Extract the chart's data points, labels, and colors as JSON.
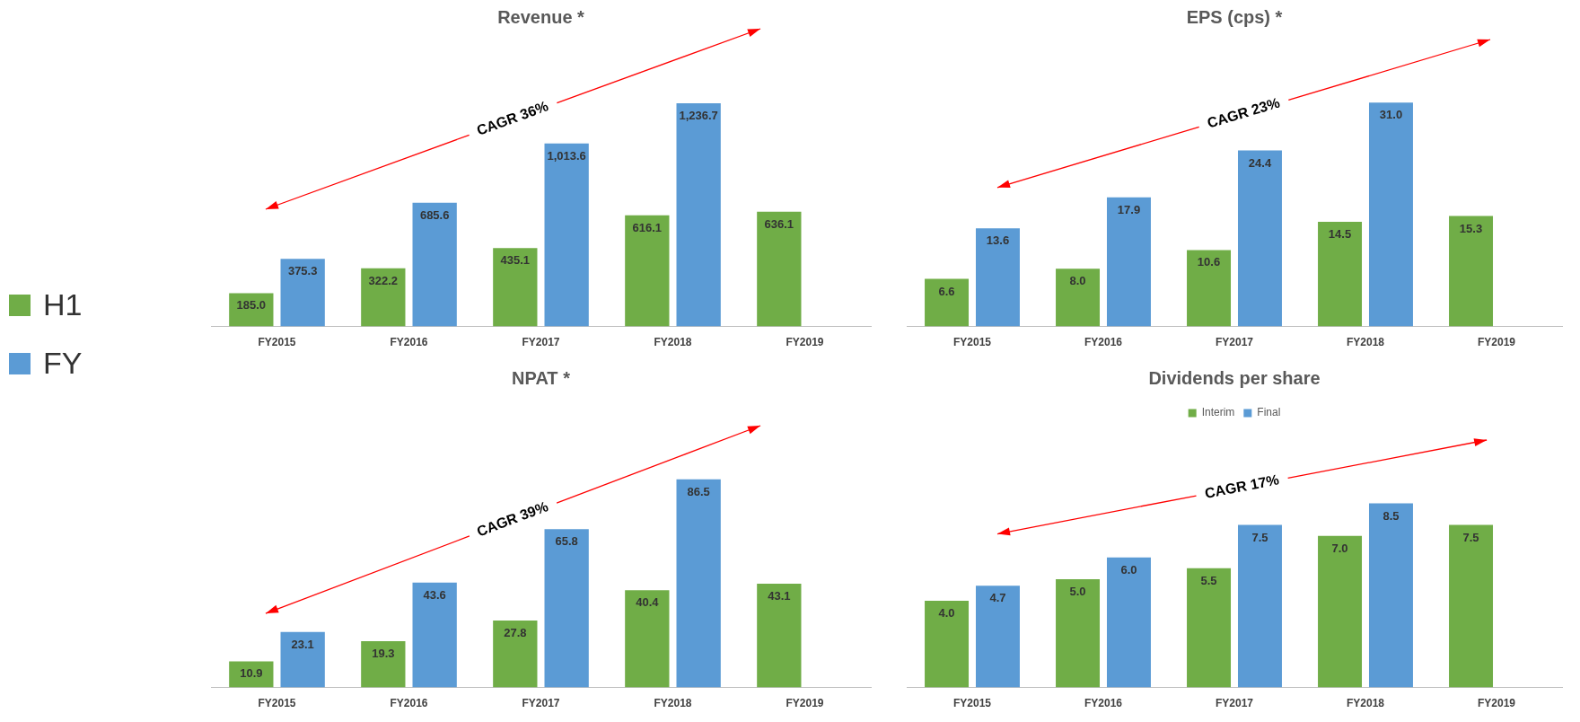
{
  "chart_data": [
    {
      "type": "bar",
      "title": "Revenue *",
      "categories": [
        "FY2015",
        "FY2016",
        "FY2017",
        "FY2018",
        "FY2019"
      ],
      "series": [
        {
          "name": "H1",
          "color": "#70ad47",
          "values": [
            185.0,
            322.2,
            435.1,
            616.1,
            636.1
          ],
          "value_labels": [
            "185.0",
            "322.2",
            "435.1",
            "616.1",
            "636.1"
          ]
        },
        {
          "name": "FY",
          "color": "#5b9bd5",
          "values": [
            375.3,
            685.6,
            1013.6,
            1236.7,
            null
          ],
          "value_labels": [
            "375.3",
            "685.6",
            "1,013.6",
            "1,236.7",
            null
          ]
        }
      ],
      "annotations": [
        "CAGR 36%"
      ],
      "legend": "left"
    },
    {
      "type": "bar",
      "title": "EPS (cps) *",
      "categories": [
        "FY2015",
        "FY2016",
        "FY2017",
        "FY2018",
        "FY2019"
      ],
      "series": [
        {
          "color": "#70ad47",
          "values": [
            6.6,
            8.0,
            10.6,
            14.5,
            15.3
          ],
          "value_labels": [
            "6.6",
            "8.0",
            "10.6",
            "14.5",
            "15.3"
          ]
        },
        {
          "color": "#5b9bd5",
          "values": [
            13.6,
            17.9,
            24.4,
            31.0,
            null
          ],
          "value_labels": [
            "13.6",
            "17.9",
            "24.4",
            "31.0",
            null
          ]
        }
      ],
      "annotations": [
        "CAGR 23%"
      ]
    },
    {
      "type": "bar",
      "title": "NPAT *",
      "categories": [
        "FY2015",
        "FY2016",
        "FY2017",
        "FY2018",
        "FY2019"
      ],
      "series": [
        {
          "color": "#70ad47",
          "values": [
            10.9,
            19.3,
            27.8,
            40.4,
            43.1
          ],
          "value_labels": [
            "10.9",
            "19.3",
            "27.8",
            "40.4",
            "43.1"
          ]
        },
        {
          "color": "#5b9bd5",
          "values": [
            23.1,
            43.6,
            65.8,
            86.5,
            null
          ],
          "value_labels": [
            "23.1",
            "43.6",
            "65.8",
            "86.5",
            null
          ]
        }
      ],
      "annotations": [
        "CAGR 39%"
      ]
    },
    {
      "type": "bar",
      "title": "Dividends per share",
      "categories": [
        "FY2015",
        "FY2016",
        "FY2017",
        "FY2018",
        "FY2019"
      ],
      "series": [
        {
          "name": "Interim",
          "color": "#70ad47",
          "values": [
            4.0,
            5.0,
            5.5,
            7.0,
            7.5
          ],
          "value_labels": [
            "4.0",
            "5.0",
            "5.5",
            "7.0",
            "7.5"
          ]
        },
        {
          "name": "Final",
          "color": "#5b9bd5",
          "values": [
            4.7,
            6.0,
            7.5,
            8.5,
            null
          ],
          "value_labels": [
            "4.7",
            "6.0",
            "7.5",
            "8.5",
            null
          ]
        }
      ],
      "annotations": [
        "CAGR 17%"
      ],
      "legend": "top"
    }
  ]
}
